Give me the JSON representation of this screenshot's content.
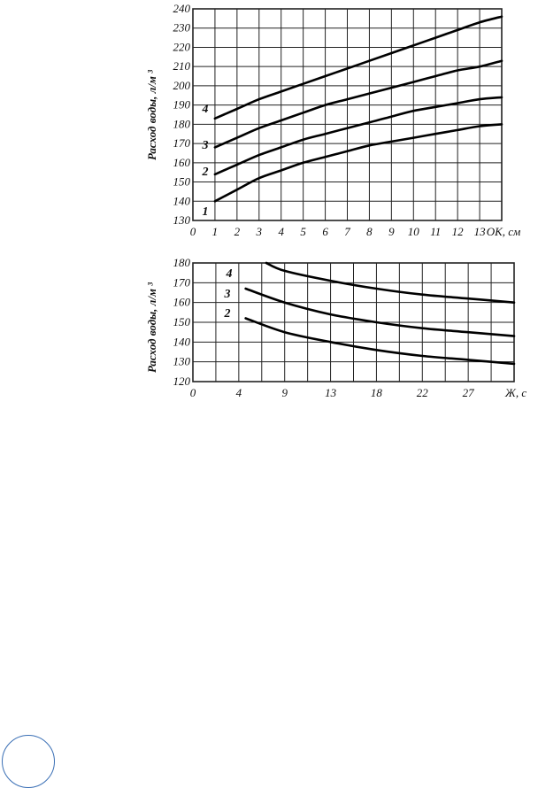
{
  "chart_data": [
    {
      "type": "line",
      "ylabel": "Расход воды, л/м ³",
      "xlabel": "ОК, см",
      "x_ticks": [
        "0",
        "1",
        "2",
        "3",
        "4",
        "5",
        "6",
        "7",
        "8",
        "9",
        "10",
        "11",
        "12",
        "13"
      ],
      "y_ticks": [
        "130",
        "140",
        "150",
        "160",
        "170",
        "180",
        "190",
        "200",
        "210",
        "220",
        "230",
        "240"
      ],
      "xlim": [
        0,
        14
      ],
      "ylim": [
        130,
        240
      ],
      "grid": true,
      "series": [
        {
          "name": "1",
          "x": [
            1,
            2,
            3,
            4,
            5,
            6,
            7,
            8,
            9,
            10,
            11,
            12,
            13,
            14
          ],
          "values": [
            140,
            146,
            152,
            156,
            160,
            163,
            166,
            169,
            171,
            173,
            175,
            177,
            179,
            180
          ]
        },
        {
          "name": "2",
          "x": [
            1,
            2,
            3,
            4,
            5,
            6,
            7,
            8,
            9,
            10,
            11,
            12,
            13,
            14
          ],
          "values": [
            154,
            159,
            164,
            168,
            172,
            175,
            178,
            181,
            184,
            187,
            189,
            191,
            193,
            194
          ]
        },
        {
          "name": "3",
          "x": [
            1,
            2,
            3,
            4,
            5,
            6,
            7,
            8,
            9,
            10,
            11,
            12,
            13,
            14
          ],
          "values": [
            168,
            173,
            178,
            182,
            186,
            190,
            193,
            196,
            199,
            202,
            205,
            208,
            210,
            213
          ]
        },
        {
          "name": "4",
          "x": [
            1,
            2,
            3,
            4,
            5,
            6,
            7,
            8,
            9,
            10,
            11,
            12,
            13,
            14
          ],
          "values": [
            183,
            188,
            193,
            197,
            201,
            205,
            209,
            213,
            217,
            221,
            225,
            229,
            233,
            236
          ]
        }
      ]
    },
    {
      "type": "line",
      "ylabel": "Расход воды, л/м ³",
      "xlabel": "Ж, с",
      "x_ticks": [
        {
          "label": "0",
          "pos": 0
        },
        {
          "label": "4",
          "pos": 2
        },
        {
          "label": "9",
          "pos": 4
        },
        {
          "label": "13",
          "pos": 6
        },
        {
          "label": "18",
          "pos": 8
        },
        {
          "label": "22",
          "pos": 10
        },
        {
          "label": "27",
          "pos": 12
        },
        {
          "label": "Ж, с",
          "pos": 14
        }
      ],
      "y_ticks": [
        "120",
        "130",
        "140",
        "150",
        "160",
        "170",
        "180"
      ],
      "xlim": [
        0,
        14
      ],
      "ylim": [
        120,
        180
      ],
      "grid": true,
      "series": [
        {
          "name": "2",
          "x": [
            2.3,
            4,
            6,
            8,
            10,
            12,
            14
          ],
          "values": [
            152,
            145,
            140,
            136,
            133,
            131,
            129
          ]
        },
        {
          "name": "3",
          "x": [
            2.3,
            4,
            6,
            8,
            10,
            12,
            14
          ],
          "values": [
            167,
            160,
            154,
            150,
            147,
            145,
            143
          ]
        },
        {
          "name": "4",
          "x": [
            3.2,
            4,
            6,
            8,
            10,
            12,
            14
          ],
          "values": [
            180,
            176,
            171,
            167,
            164,
            162,
            160
          ]
        }
      ]
    }
  ]
}
